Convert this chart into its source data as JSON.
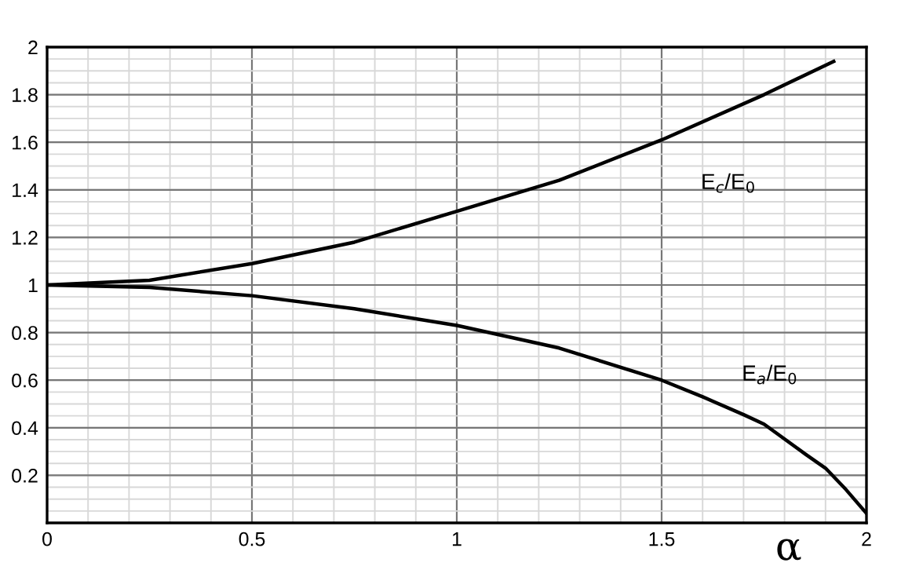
{
  "chart_data": {
    "type": "line",
    "xlabel": "α",
    "xlim": [
      0,
      2
    ],
    "ylim": [
      0,
      2
    ],
    "xticks": [
      0,
      0.5,
      1,
      1.5,
      2
    ],
    "yticks": [
      0.2,
      0.4,
      0.6,
      0.8,
      1,
      1.2,
      1.4,
      1.6,
      1.8,
      2
    ],
    "grid": true,
    "line_style": "solid",
    "marker": "none",
    "series": [
      {
        "name": "E$_{c}$/E$_{0}$",
        "color": "#000000",
        "x": [
          0,
          0.25,
          0.5,
          0.75,
          1,
          1.25,
          1.5,
          1.75,
          1.92
        ],
        "values": [
          1,
          1.02,
          1.09,
          1.18,
          1.31,
          1.44,
          1.61,
          1.8,
          1.94
        ]
      },
      {
        "name": "E$_{a}$/E$_{0}$",
        "color": "#000000",
        "x": [
          0,
          0.25,
          0.5,
          0.75,
          1,
          1.25,
          1.5,
          1.6,
          1.7,
          1.75,
          1.85,
          1.9,
          1.95,
          2
        ],
        "values": [
          1,
          0.99,
          0.955,
          0.9,
          0.83,
          0.735,
          0.6,
          0.53,
          0.455,
          0.415,
          0.29,
          0.23,
          0.14,
          0.04
        ]
      }
    ]
  }
}
